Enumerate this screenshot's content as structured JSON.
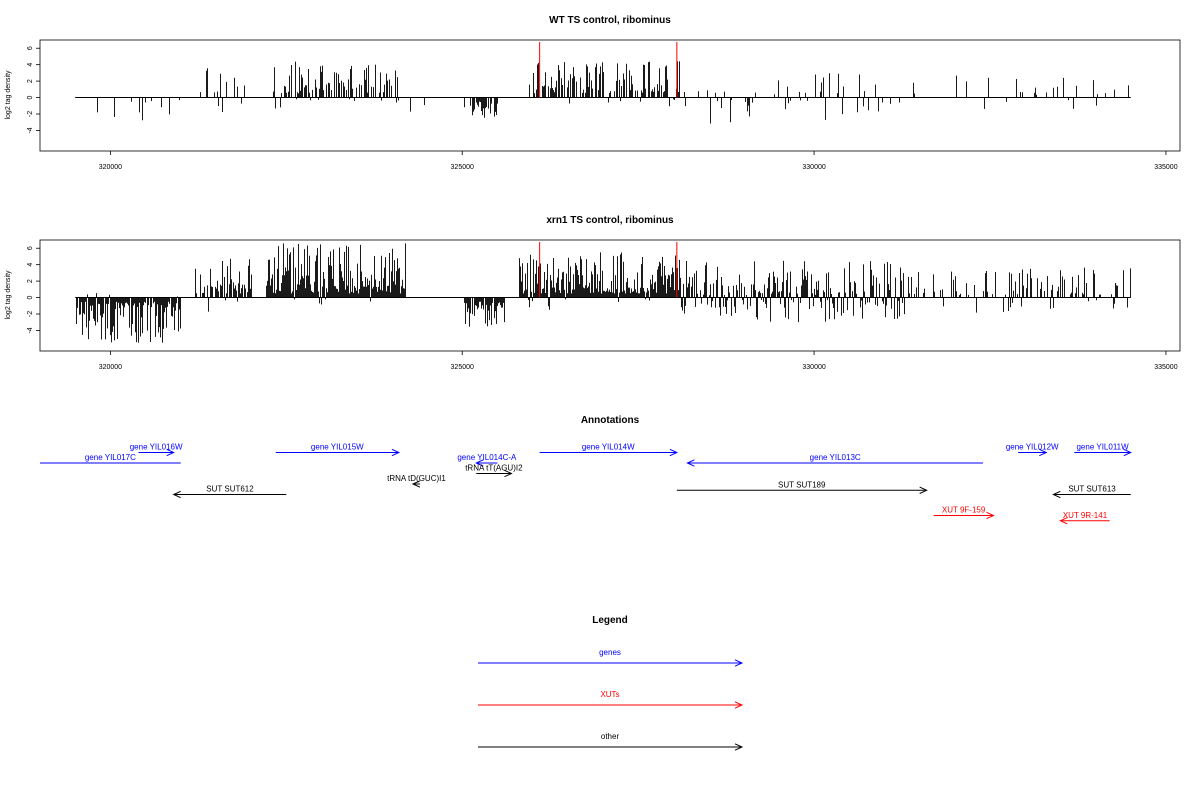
{
  "chart_data": [
    {
      "type": "bar",
      "title": "WT TS control, ribominus",
      "ylabel": "log2 tag density",
      "xlim": [
        319000,
        335200
      ],
      "ylim": [
        -6.5,
        7
      ],
      "x_ticks": [
        320000,
        325000,
        330000,
        335000
      ],
      "y_ticks": [
        -4,
        -2,
        0,
        2,
        4,
        6
      ],
      "baseline_x_range": [
        319500,
        334500
      ],
      "markers_x": [
        326100,
        328050
      ],
      "marker_color": "#ff0000",
      "segments": [
        {
          "from": 319500,
          "to": 321200,
          "density": 0.12,
          "pos": [
            0.0,
            0.0
          ],
          "neg": [
            0.3,
            3.2
          ],
          "pos_prob": 0.0
        },
        {
          "from": 321200,
          "to": 322000,
          "density": 0.25,
          "pos": [
            0.5,
            3.9
          ],
          "neg": [
            0.3,
            2.0
          ],
          "pos_prob": 0.85
        },
        {
          "from": 322300,
          "to": 324100,
          "density": 0.5,
          "pos": [
            0.5,
            4.4
          ],
          "neg": [
            0.2,
            1.8
          ],
          "pos_prob": 0.9
        },
        {
          "from": 324200,
          "to": 324500,
          "density": 0.1,
          "pos": [
            0.3,
            2.0
          ],
          "neg": [
            0.3,
            1.8
          ],
          "pos_prob": 0.5
        },
        {
          "from": 325000,
          "to": 325500,
          "density": 0.5,
          "pos": [
            0.0,
            0.0
          ],
          "neg": [
            0.5,
            2.8
          ],
          "pos_prob": 0.0
        },
        {
          "from": 325900,
          "to": 328100,
          "density": 0.6,
          "pos": [
            0.5,
            4.5
          ],
          "neg": [
            0.2,
            1.5
          ],
          "pos_prob": 0.92
        },
        {
          "from": 328100,
          "to": 331000,
          "density": 0.25,
          "pos": [
            0.3,
            3.8
          ],
          "neg": [
            0.3,
            3.2
          ],
          "pos_prob": 0.55
        },
        {
          "from": 331000,
          "to": 334500,
          "density": 0.12,
          "pos": [
            0.3,
            3.2
          ],
          "neg": [
            0.3,
            1.5
          ],
          "pos_prob": 0.8
        }
      ]
    },
    {
      "type": "bar",
      "title": "xrn1 TS control, ribominus",
      "ylabel": "log2 tag density",
      "xlim": [
        319000,
        335200
      ],
      "ylim": [
        -6.5,
        7
      ],
      "x_ticks": [
        320000,
        325000,
        330000,
        335000
      ],
      "y_ticks": [
        -4,
        -2,
        0,
        2,
        4,
        6
      ],
      "baseline_x_range": [
        319500,
        334500
      ],
      "markers_x": [
        326100,
        328050
      ],
      "marker_color": "#ff0000",
      "segments": [
        {
          "from": 319500,
          "to": 321000,
          "density": 0.9,
          "pos": [
            0.1,
            0.6
          ],
          "neg": [
            0.5,
            5.5
          ],
          "pos_prob": 0.05
        },
        {
          "from": 321200,
          "to": 322000,
          "density": 0.7,
          "pos": [
            0.5,
            4.8
          ],
          "neg": [
            0.3,
            2.0
          ],
          "pos_prob": 0.9
        },
        {
          "from": 322200,
          "to": 324200,
          "density": 1.0,
          "pos": [
            0.5,
            6.6
          ],
          "neg": [
            0.2,
            1.5
          ],
          "pos_prob": 0.95
        },
        {
          "from": 324300,
          "to": 324500,
          "density": 0.2,
          "pos": [
            0.3,
            2.0
          ],
          "neg": [
            0.3,
            1.8
          ],
          "pos_prob": 0.3
        },
        {
          "from": 325000,
          "to": 325600,
          "density": 0.8,
          "pos": [
            0.0,
            0.0
          ],
          "neg": [
            0.5,
            3.8
          ],
          "pos_prob": 0.0
        },
        {
          "from": 325800,
          "to": 328100,
          "density": 1.0,
          "pos": [
            0.5,
            5.5
          ],
          "neg": [
            0.2,
            1.5
          ],
          "pos_prob": 0.95
        },
        {
          "from": 328100,
          "to": 331300,
          "density": 0.8,
          "pos": [
            0.3,
            4.5
          ],
          "neg": [
            0.3,
            3.0
          ],
          "pos_prob": 0.6
        },
        {
          "from": 331300,
          "to": 334500,
          "density": 0.35,
          "pos": [
            0.3,
            3.7
          ],
          "neg": [
            0.3,
            2.0
          ],
          "pos_prob": 0.85
        }
      ]
    }
  ],
  "annotations": {
    "title": "Annotations",
    "xlim": [
      319000,
      335200
    ],
    "features": [
      {
        "label": "gene YIL017C",
        "from": 319000,
        "to": 321000,
        "row": 0,
        "strand": "none",
        "color": "#0000ff"
      },
      {
        "label": "gene YIL016W",
        "from": 320400,
        "to": 320900,
        "row": -1,
        "strand": "+",
        "color": "#0000ff"
      },
      {
        "label": "gene YIL015W",
        "from": 322350,
        "to": 324100,
        "row": -1,
        "strand": "+",
        "color": "#0000ff"
      },
      {
        "label": "tRNA tD(GUC)I1",
        "from": 324300,
        "to": 324400,
        "row": 2,
        "strand": "-",
        "color": "#000000"
      },
      {
        "label": "gene YIL014C-A",
        "from": 325200,
        "to": 325500,
        "row": 0,
        "strand": "-",
        "color": "#0000ff"
      },
      {
        "label": "tRNA tT(AGU)I2",
        "from": 325200,
        "to": 325700,
        "row": 1,
        "strand": "+",
        "color": "#000000"
      },
      {
        "label": "gene YIL014W",
        "from": 326100,
        "to": 328050,
        "row": -1,
        "strand": "+",
        "color": "#0000ff"
      },
      {
        "label": "gene YIL013C",
        "from": 328200,
        "to": 332400,
        "row": 0,
        "strand": "-",
        "color": "#0000ff"
      },
      {
        "label": "gene YIL012W",
        "from": 332900,
        "to": 333300,
        "row": -1,
        "strand": "+",
        "color": "#0000ff"
      },
      {
        "label": "gene YIL011W",
        "from": 333700,
        "to": 334500,
        "row": -1,
        "strand": "+",
        "color": "#0000ff"
      },
      {
        "label": "SUT SUT612",
        "from": 320900,
        "to": 322500,
        "row": 3,
        "strand": "-",
        "color": "#000000"
      },
      {
        "label": "SUT SUT189",
        "from": 328050,
        "to": 331600,
        "row": 2.6,
        "strand": "+",
        "color": "#000000"
      },
      {
        "label": "SUT SUT613",
        "from": 333400,
        "to": 334500,
        "row": 3,
        "strand": "-",
        "color": "#000000"
      },
      {
        "label": "XUT 9F-159",
        "from": 331700,
        "to": 332550,
        "row": 5,
        "strand": "+",
        "color": "#ff0000"
      },
      {
        "label": "XUT 9R-141",
        "from": 333500,
        "to": 334200,
        "row": 5.5,
        "strand": "-",
        "color": "#ff0000"
      }
    ]
  },
  "legend": {
    "title": "Legend",
    "items": [
      {
        "label": "genes",
        "color": "#0000ff"
      },
      {
        "label": "XUTs",
        "color": "#ff0000"
      },
      {
        "label": "other",
        "color": "#000000"
      }
    ]
  }
}
